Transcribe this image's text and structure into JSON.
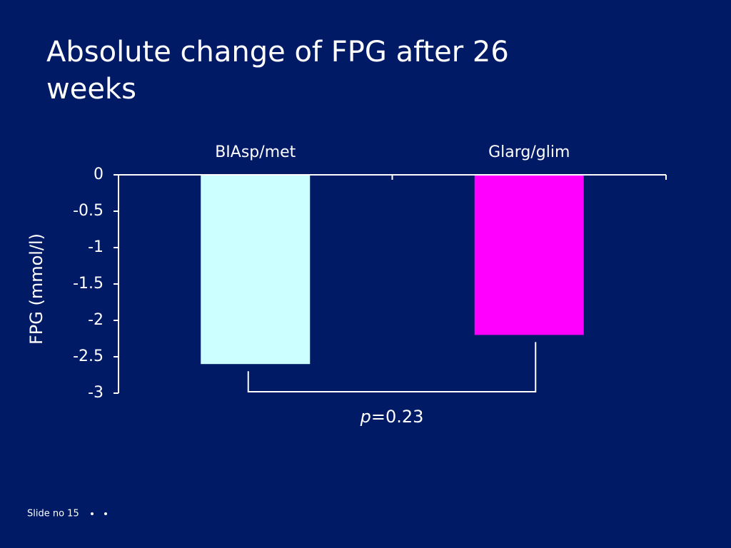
{
  "title": "Absolute change of FPG after 26 weeks",
  "chart_data": {
    "type": "bar",
    "categories": [
      "BIAsp/met",
      "Glarg/glim"
    ],
    "series": [
      {
        "values": [
          -2.6,
          -2.2
        ],
        "colors": [
          "#ccffff",
          "#ff00ff"
        ]
      }
    ],
    "ylabel": "FPG (mmol/l)",
    "ylim": [
      -3,
      0
    ],
    "yticks": [
      0,
      -0.5,
      -1,
      -1.5,
      -2,
      -2.5,
      -3
    ],
    "annotation_parts": [
      "p",
      "=0.23"
    ]
  },
  "footer": "Slide no 15"
}
